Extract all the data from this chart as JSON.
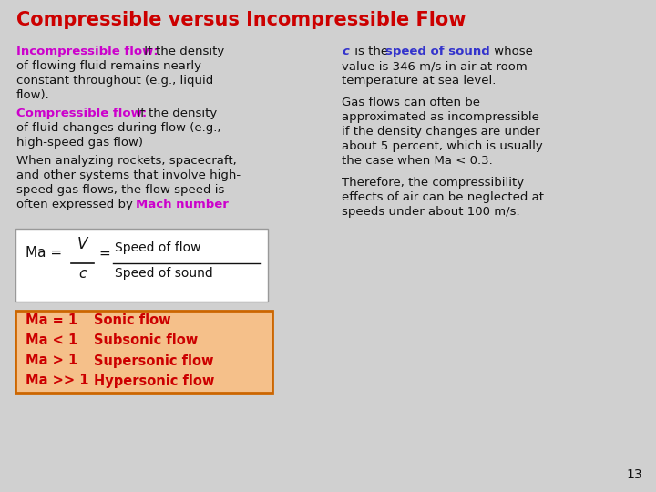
{
  "title": "Compressible versus Incompressible Flow",
  "title_color": "#cc0000",
  "title_fontsize": 15,
  "bg_color": "#d0d0d0",
  "slide_number": "13",
  "para1_label": "Incompressible flow:",
  "para1_label_color": "#cc00cc",
  "para2_label": "Compressible flow:",
  "para2_label_color": "#cc00cc",
  "para3_highlight": "Mach number",
  "para3_highlight_color": "#cc00cc",
  "right_para1_c_color": "#3333cc",
  "right_para1_highlight": "speed of sound",
  "right_para1_highlight_color": "#3333cc",
  "formula_bg": "#ffffff",
  "formula_border": "#999999",
  "table_bg": "#f5c08a",
  "table_border": "#cc6600",
  "table_text_color": "#cc0000",
  "text_color": "#111111",
  "body_fontsize": 9.5,
  "table_fontsize": 10.5
}
